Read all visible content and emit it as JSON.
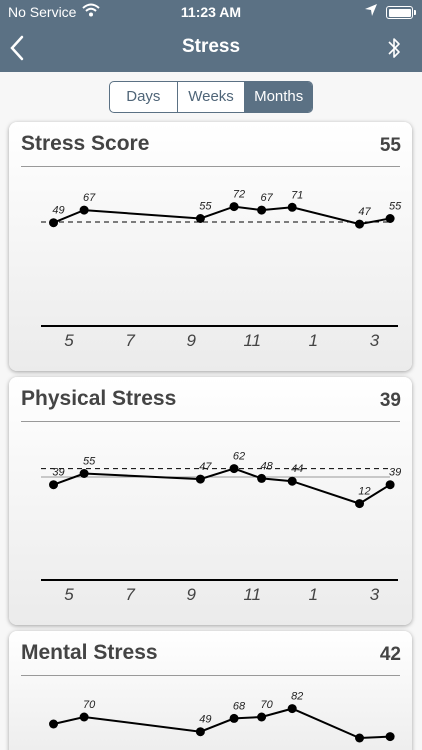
{
  "status": {
    "carrier": "No Service",
    "time": "11:23 AM"
  },
  "nav": {
    "title": "Stress",
    "back_icon": "chevron-left-icon",
    "bluetooth_icon": "bluetooth-icon"
  },
  "segment": {
    "options": [
      "Days",
      "Weeks",
      "Months"
    ],
    "selected": "Months"
  },
  "cards": [
    {
      "title": "Stress Score",
      "value": "55"
    },
    {
      "title": "Physical Stress",
      "value": "39"
    },
    {
      "title": "Mental Stress",
      "value": "42"
    }
  ],
  "chart_data": [
    {
      "type": "line",
      "title": "Stress Score",
      "x": [
        4.2,
        5.2,
        9,
        10.1,
        11,
        12,
        2.2,
        3.2
      ],
      "values": [
        49,
        67,
        55,
        72,
        67,
        71,
        47,
        55
      ],
      "tick_labels": [
        "5",
        "7",
        "9",
        "11",
        "1",
        "3"
      ],
      "baseline": 50,
      "ylim": [
        -40,
        110
      ],
      "grid": false,
      "colors": {
        "line": "#000000"
      }
    },
    {
      "type": "line",
      "title": "Physical Stress",
      "x": [
        4.2,
        5.2,
        9,
        10.1,
        11,
        12,
        2.2,
        3.2
      ],
      "values": [
        39,
        55,
        47,
        62,
        48,
        44,
        12,
        39
      ],
      "tick_labels": [
        "5",
        "7",
        "9",
        "11",
        "1",
        "3"
      ],
      "baseline": 62,
      "reference": 50,
      "ylim": [
        -40,
        110
      ],
      "grid": false,
      "colors": {
        "line": "#000000"
      }
    },
    {
      "type": "line",
      "title": "Mental Stress",
      "x": [
        4.2,
        5.2,
        9,
        10.1,
        11,
        12,
        2.2,
        3.2
      ],
      "values": [
        60,
        70,
        49,
        68,
        70,
        82,
        40,
        42
      ],
      "point_labels": [
        "",
        "70",
        "49",
        "68",
        "70",
        "82",
        "",
        ""
      ],
      "tick_labels": [
        "5",
        "7",
        "9",
        "11",
        "1",
        "3"
      ],
      "ylim": [
        -40,
        110
      ],
      "grid": false,
      "colors": {
        "line": "#000000"
      }
    }
  ]
}
